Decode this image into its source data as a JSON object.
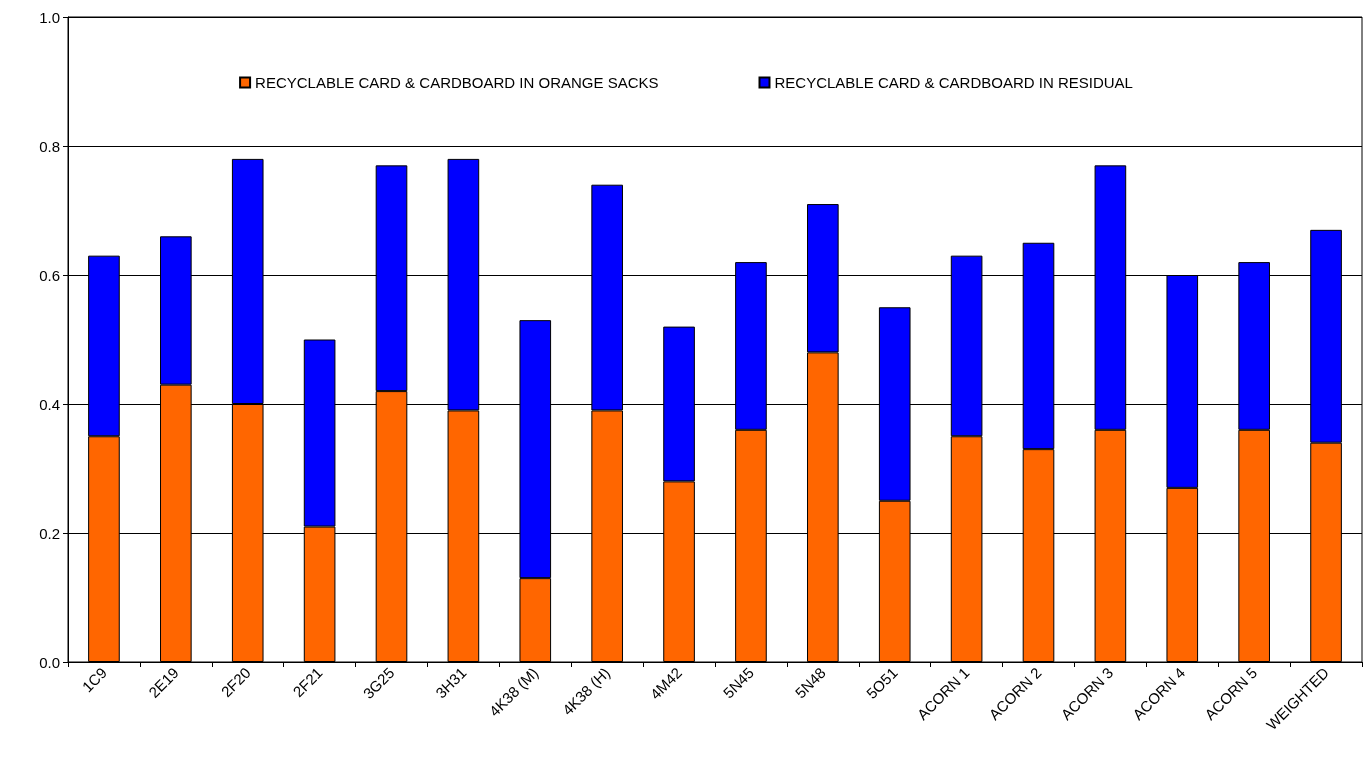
{
  "chart_data": {
    "type": "bar",
    "stacked": true,
    "categories": [
      "1C9",
      "2E19",
      "2F20",
      "2F21",
      "3G25",
      "3H31",
      "4K38 (M)",
      "4K38 (H)",
      "4M42",
      "5N45",
      "5N48",
      "5O51",
      "ACORN 1",
      "ACORN 2",
      "ACORN 3",
      "ACORN 4",
      "ACORN 5",
      "WEIGHTED"
    ],
    "series": [
      {
        "name": "RECYCLABLE CARD & CARDBOARD IN ORANGE SACKS",
        "color": "#ff6600",
        "values": [
          0.35,
          0.43,
          0.4,
          0.21,
          0.42,
          0.39,
          0.13,
          0.39,
          0.28,
          0.36,
          0.48,
          0.25,
          0.35,
          0.33,
          0.36,
          0.27,
          0.36,
          0.34
        ]
      },
      {
        "name": "RECYCLABLE CARD & CARDBOARD IN RESIDUAL",
        "color": "#0000ff",
        "values": [
          0.28,
          0.23,
          0.38,
          0.29,
          0.35,
          0.39,
          0.4,
          0.35,
          0.24,
          0.26,
          0.23,
          0.3,
          0.28,
          0.32,
          0.41,
          0.33,
          0.26,
          0.33
        ]
      }
    ],
    "ylim": [
      0,
      1
    ],
    "yticks": [
      {
        "value": 0,
        "label": "0.0"
      },
      {
        "value": 0.2,
        "label": "0.2"
      },
      {
        "value": 0.4,
        "label": "0.4"
      },
      {
        "value": 0.6,
        "label": "0.6"
      },
      {
        "value": 0.8,
        "label": "0.8"
      },
      {
        "value": 1,
        "label": "1.0"
      }
    ],
    "grid": "y",
    "legend": "top"
  }
}
